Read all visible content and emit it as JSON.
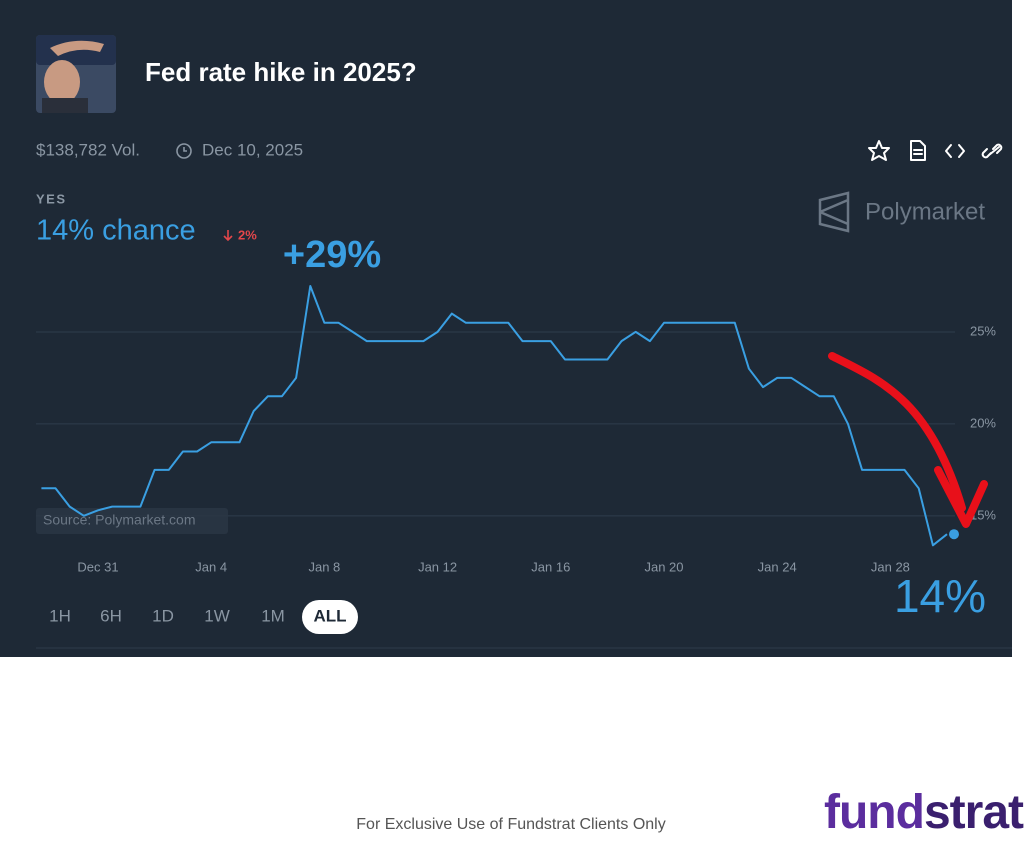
{
  "header": {
    "title": "Fed rate hike in 2025?",
    "volume": "$138,782 Vol.",
    "date": "Dec 10, 2025"
  },
  "outcome": {
    "label": "YES",
    "chance": "14% chance",
    "change": "2%"
  },
  "brand": "Polymarket",
  "timeframes": [
    "1H",
    "6H",
    "1D",
    "1W",
    "1M",
    "ALL"
  ],
  "selected_timeframe": 5,
  "chart_data": {
    "type": "line",
    "categories": [
      null,
      null,
      null,
      null,
      "Dec 31",
      null,
      null,
      null,
      null,
      null,
      null,
      null,
      "Jan 4",
      null,
      null,
      null,
      null,
      null,
      null,
      null,
      "Jan 8",
      null,
      null,
      null,
      null,
      null,
      null,
      null,
      "Jan 12",
      null,
      null,
      null,
      null,
      null,
      null,
      null,
      "Jan 16",
      null,
      null,
      null,
      null,
      null,
      null,
      null,
      "Jan 20",
      null,
      null,
      null,
      null,
      null,
      null,
      null,
      "Jan 24",
      null,
      null,
      null,
      null,
      null,
      null,
      null,
      "Jan 28",
      null,
      null,
      null,
      null
    ],
    "values": [
      16.5,
      16.5,
      15.5,
      15.0,
      15.3,
      15.5,
      15.5,
      15.5,
      17.5,
      17.5,
      18.5,
      18.5,
      19,
      19,
      19,
      20.7,
      21.5,
      21.5,
      22.5,
      27.5,
      25.5,
      25.5,
      25,
      24.5,
      24.5,
      24.5,
      24.5,
      24.5,
      25,
      26,
      25.5,
      25.5,
      25.5,
      25.5,
      24.5,
      24.5,
      24.5,
      23.5,
      23.5,
      23.5,
      23.5,
      24.5,
      25,
      24.5,
      25.5,
      25.5,
      25.5,
      25.5,
      25.5,
      25.5,
      23,
      22,
      22.5,
      22.5,
      22,
      21.5,
      21.5,
      20,
      17.5,
      17.5,
      17.5,
      17.5,
      16.5,
      13.4,
      14
    ],
    "color": "#3a9fe2",
    "ylim": [
      12,
      30
    ],
    "yticks": [
      {
        "value": 15,
        "label": "15%"
      },
      {
        "value": 20,
        "label": "20%"
      },
      {
        "value": 25,
        "label": "25%"
      }
    ],
    "grid": true,
    "source": "Source: Polymarket.com",
    "annotations": [
      "+29%",
      "14%"
    ]
  },
  "footer": {
    "disclaimer": "For Exclusive Use of Fundstrat Clients Only",
    "logo_first": "fund",
    "logo_second": "strat"
  }
}
